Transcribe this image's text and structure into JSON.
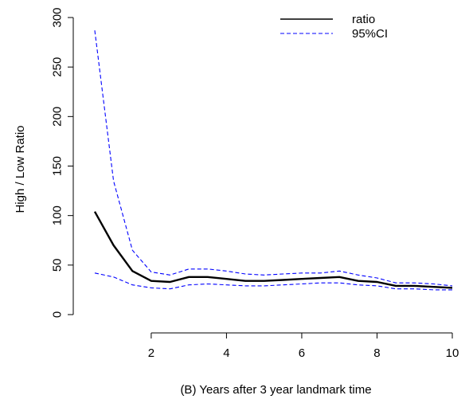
{
  "chart_data": {
    "type": "line",
    "xlabel": "(B) Years after 3 year landmark time",
    "ylabel": "High / Low  Ratio",
    "xlim": [
      0.5,
      10
    ],
    "ylim": [
      0,
      300
    ],
    "x_ticks": [
      2,
      4,
      6,
      8,
      10
    ],
    "y_ticks": [
      0,
      50,
      100,
      150,
      200,
      250,
      300
    ],
    "x_tick_labels": [
      "2",
      "4",
      "6",
      "8",
      "10"
    ],
    "y_tick_labels": [
      "0",
      "50",
      "100",
      "150",
      "200",
      "250",
      "300"
    ],
    "grid": false,
    "legend_position": "top-right",
    "legend": [
      {
        "label": "ratio",
        "color": "#000000",
        "style": "solid"
      },
      {
        "label": "95%CI",
        "color": "#0000ff",
        "style": "dashed"
      }
    ],
    "x": [
      0.5,
      1.0,
      1.5,
      2.0,
      2.5,
      3.0,
      3.5,
      4.0,
      4.5,
      5.0,
      5.5,
      6.0,
      6.5,
      7.0,
      7.5,
      8.0,
      8.5,
      9.0,
      9.5,
      10.0
    ],
    "series": [
      {
        "name": "ratio",
        "color": "#000000",
        "style": "solid",
        "values": [
          104,
          70,
          44,
          34,
          33,
          38,
          38,
          36,
          34,
          34,
          35,
          36,
          37,
          38,
          34,
          33,
          29,
          29,
          28,
          27
        ]
      },
      {
        "name": "95%CI",
        "color": "#0000ff",
        "style": "dashed",
        "values": [
          287,
          135,
          65,
          43,
          40,
          46,
          46,
          44,
          41,
          40,
          41,
          42,
          42,
          44,
          40,
          37,
          32,
          32,
          31,
          29
        ]
      },
      {
        "color": "#0000ff",
        "style": "dashed",
        "values": [
          42,
          38,
          30,
          27,
          26,
          30,
          31,
          30,
          29,
          29,
          30,
          31,
          32,
          32,
          30,
          29,
          26,
          26,
          25,
          25
        ]
      }
    ]
  }
}
